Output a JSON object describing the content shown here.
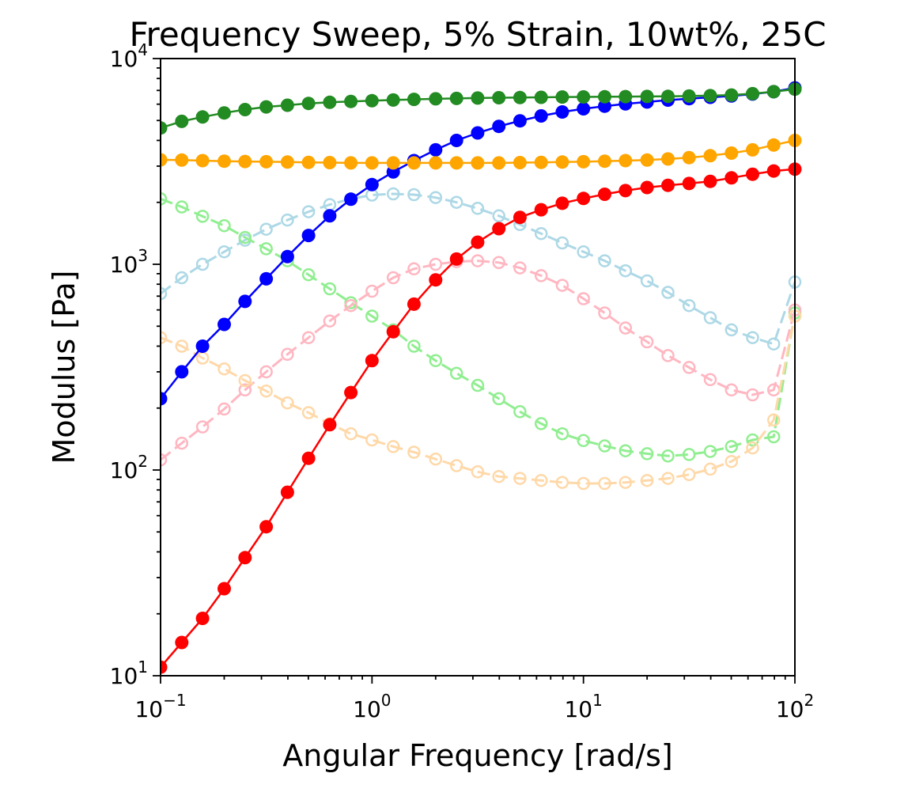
{
  "chart_data": {
    "type": "line",
    "title": "Frequency Sweep, 5% Strain, 10wt%, 25C",
    "xlabel": "Angular Frequency [rad/s]",
    "ylabel": "Modulus [Pa]",
    "xscale": "log",
    "yscale": "log",
    "xlim": [
      0.1,
      100
    ],
    "ylim": [
      10,
      10000
    ],
    "grid": false,
    "legend": "none",
    "x_ticks": [
      {
        "base": "10",
        "exp": "−1"
      },
      {
        "base": "10",
        "exp": "0"
      },
      {
        "base": "10",
        "exp": "1"
      },
      {
        "base": "10",
        "exp": "2"
      }
    ],
    "y_ticks": [
      {
        "base": "10",
        "exp": "1"
      },
      {
        "base": "10",
        "exp": "2"
      },
      {
        "base": "10",
        "exp": "3"
      },
      {
        "base": "10",
        "exp": "4"
      }
    ],
    "x": [
      0.1,
      0.126,
      0.158,
      0.2,
      0.251,
      0.316,
      0.398,
      0.501,
      0.631,
      0.794,
      1.0,
      1.26,
      1.58,
      2.0,
      2.51,
      3.16,
      3.98,
      5.01,
      6.31,
      7.94,
      10.0,
      12.6,
      15.8,
      20.0,
      25.1,
      31.6,
      39.8,
      50.1,
      63.1,
      79.4,
      100.0
    ],
    "series": [
      {
        "color": "#ff0000",
        "style": "solid",
        "marker": "filled",
        "values": [
          11,
          14.5,
          19,
          26.5,
          37.5,
          53,
          78,
          114,
          166,
          238,
          340,
          470,
          640,
          840,
          1060,
          1280,
          1490,
          1690,
          1840,
          1980,
          2090,
          2190,
          2280,
          2360,
          2420,
          2470,
          2530,
          2630,
          2740,
          2840,
          2900
        ]
      },
      {
        "color": "#0000ff",
        "style": "solid",
        "marker": "filled",
        "values": [
          222,
          300,
          400,
          510,
          660,
          850,
          1090,
          1380,
          1720,
          2070,
          2440,
          2810,
          3190,
          3600,
          4000,
          4350,
          4680,
          4980,
          5260,
          5500,
          5700,
          5870,
          6020,
          6150,
          6280,
          6380,
          6480,
          6580,
          6720,
          6900,
          7200
        ]
      },
      {
        "color": "#228b22",
        "style": "solid",
        "marker": "filled",
        "values": [
          4600,
          4950,
          5200,
          5440,
          5650,
          5820,
          5930,
          6050,
          6130,
          6190,
          6240,
          6290,
          6330,
          6370,
          6400,
          6430,
          6450,
          6460,
          6480,
          6500,
          6510,
          6520,
          6530,
          6540,
          6550,
          6570,
          6600,
          6650,
          6750,
          6900,
          7100
        ]
      },
      {
        "color": "#ffa500",
        "style": "solid",
        "marker": "filled",
        "values": [
          3220,
          3210,
          3190,
          3170,
          3160,
          3150,
          3140,
          3130,
          3120,
          3110,
          3110,
          3110,
          3110,
          3110,
          3110,
          3110,
          3110,
          3120,
          3130,
          3140,
          3150,
          3170,
          3190,
          3210,
          3250,
          3300,
          3370,
          3470,
          3600,
          3800,
          4000
        ]
      },
      {
        "color": "#add8e6",
        "style": "dashed",
        "marker": "open",
        "values": [
          720,
          860,
          1000,
          1150,
          1310,
          1480,
          1640,
          1800,
          1950,
          2080,
          2170,
          2200,
          2180,
          2110,
          2000,
          1870,
          1720,
          1560,
          1410,
          1270,
          1150,
          1040,
          930,
          830,
          730,
          630,
          550,
          480,
          440,
          410,
          820
        ]
      },
      {
        "color": "#90ee90",
        "style": "dashed",
        "marker": "open",
        "values": [
          2080,
          1900,
          1710,
          1540,
          1350,
          1190,
          1040,
          890,
          760,
          650,
          560,
          480,
          400,
          340,
          295,
          258,
          222,
          192,
          168,
          150,
          139,
          131,
          124,
          120,
          117,
          119,
          123,
          130,
          140,
          145,
          580
        ]
      },
      {
        "color": "#ffb6c1",
        "style": "dashed",
        "marker": "open",
        "values": [
          112,
          135,
          162,
          198,
          245,
          300,
          365,
          440,
          530,
          630,
          740,
          860,
          950,
          1000,
          1030,
          1040,
          1020,
          960,
          880,
          790,
          680,
          580,
          490,
          420,
          360,
          315,
          275,
          245,
          232,
          245,
          600
        ]
      },
      {
        "color": "#ffd8a8",
        "style": "dashed",
        "marker": "open",
        "values": [
          440,
          400,
          350,
          310,
          272,
          242,
          212,
          190,
          168,
          150,
          140,
          130,
          122,
          113,
          105,
          98,
          93,
          91,
          89,
          87,
          86,
          86,
          87,
          89,
          91,
          95,
          101,
          110,
          128,
          175,
          560
        ]
      }
    ]
  }
}
